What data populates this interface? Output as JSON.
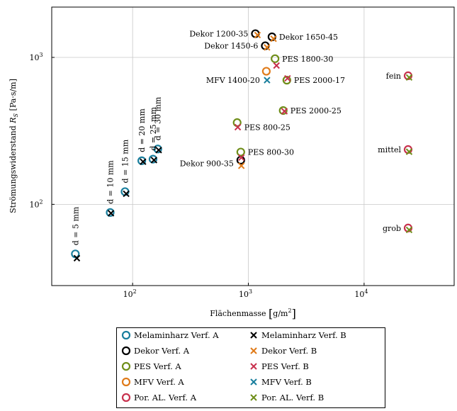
{
  "chart_data": {
    "type": "scatter",
    "xlabel": "Flächenmasse [g/m²]",
    "ylabel": "Strömungswiderstand R_S [Pa·s/m]",
    "xscale": "log",
    "yscale": "log",
    "xlim": [
      20,
      60000
    ],
    "ylim": [
      28,
      2200
    ],
    "xticks": [
      {
        "value": 100,
        "base": "10",
        "exp": "2"
      },
      {
        "value": 1000,
        "base": "10",
        "exp": "3"
      },
      {
        "value": 10000,
        "base": "10",
        "exp": "4"
      }
    ],
    "yticks": [
      {
        "value": 100,
        "base": "10",
        "exp": "2"
      },
      {
        "value": 1000,
        "base": "10",
        "exp": "3"
      }
    ],
    "grid": true,
    "legend_position": "below",
    "series": [
      {
        "name": "Melaminharz Verf. A",
        "marker": "circle",
        "color": "#1a7f9e",
        "points": [
          [
            32,
            46
          ],
          [
            64,
            88
          ],
          [
            86,
            122
          ],
          [
            120,
            198
          ],
          [
            150,
            203
          ],
          [
            165,
            238
          ]
        ]
      },
      {
        "name": "Melaminharz Verf. B",
        "marker": "cross",
        "color": "#000000",
        "points": [
          [
            33,
            43
          ],
          [
            65,
            87
          ],
          [
            88,
            118
          ],
          [
            123,
            195
          ],
          [
            153,
            200
          ],
          [
            168,
            234
          ]
        ]
      },
      {
        "name": "Dekor Verf. A",
        "marker": "circle",
        "color": "#000000",
        "points": [
          [
            1150,
            1450
          ],
          [
            1400,
            1200
          ],
          [
            1600,
            1380
          ],
          [
            860,
            200
          ]
        ]
      },
      {
        "name": "Dekor Verf. B",
        "marker": "cross",
        "color": "#e07b1a",
        "points": [
          [
            1200,
            1420
          ],
          [
            1450,
            1170
          ],
          [
            1650,
            1340
          ],
          [
            870,
            183
          ]
        ]
      },
      {
        "name": "PES Verf. A",
        "marker": "circle",
        "color": "#6f8e1a",
        "points": [
          [
            1700,
            980
          ],
          [
            2150,
            700
          ],
          [
            2000,
            435
          ],
          [
            800,
            360
          ],
          [
            860,
            227
          ]
        ]
      },
      {
        "name": "PES Verf. B",
        "marker": "cross",
        "color": "#c8324e",
        "points": [
          [
            1750,
            880
          ],
          [
            2180,
            720
          ],
          [
            2050,
            430
          ],
          [
            810,
            335
          ],
          [
            870,
            208
          ]
        ]
      },
      {
        "name": "MFV Verf. A",
        "marker": "circle",
        "color": "#e07b1a",
        "points": [
          [
            1430,
            805
          ]
        ]
      },
      {
        "name": "MFV Verf. B",
        "marker": "cross",
        "color": "#1a7f9e",
        "points": [
          [
            1450,
            700
          ]
        ]
      },
      {
        "name": "Por. AL. Verf. A",
        "marker": "circle",
        "color": "#c8324e",
        "points": [
          [
            24000,
            750
          ],
          [
            24000,
            236
          ],
          [
            24000,
            69
          ]
        ]
      },
      {
        "name": "Por. AL. Verf. B",
        "marker": "cross",
        "color": "#6f8e1a",
        "points": [
          [
            24500,
            730
          ],
          [
            24500,
            228
          ],
          [
            24500,
            67
          ]
        ]
      }
    ],
    "annotations": [
      {
        "text": "Dekor 1200-35",
        "x": 1150,
        "y": 1450,
        "anchor": "end"
      },
      {
        "text": "Dekor 1650-45",
        "x": 1600,
        "y": 1380,
        "anchor": "start"
      },
      {
        "text": "Dekor 1450-6",
        "x": 1400,
        "y": 1200,
        "anchor": "end"
      },
      {
        "text": "PES 1800-30",
        "x": 1700,
        "y": 980,
        "anchor": "start"
      },
      {
        "text": "MFV 1400-20",
        "x": 1450,
        "y": 700,
        "anchor": "end"
      },
      {
        "text": "PES 2000-17",
        "x": 2150,
        "y": 700,
        "anchor": "start"
      },
      {
        "text": "PES 2000-25",
        "x": 2000,
        "y": 435,
        "anchor": "start"
      },
      {
        "text": "PES 800-25",
        "x": 800,
        "y": 335,
        "anchor": "start"
      },
      {
        "text": "PES 800-30",
        "x": 860,
        "y": 227,
        "anchor": "start"
      },
      {
        "text": "Dekor 900-35",
        "x": 860,
        "y": 190,
        "anchor": "end"
      },
      {
        "text": "fein",
        "x": 24000,
        "y": 750,
        "anchor": "end"
      },
      {
        "text": "mittel",
        "x": 24000,
        "y": 236,
        "anchor": "end"
      },
      {
        "text": "grob",
        "x": 24000,
        "y": 69,
        "anchor": "end"
      }
    ],
    "vertical_annotations": [
      {
        "text": "d = 5 mm",
        "x": 32,
        "y": 46
      },
      {
        "text": "d = 10 mm",
        "x": 64,
        "y": 88
      },
      {
        "text": "d = 15 mm",
        "x": 86,
        "y": 122
      },
      {
        "text": "d = 20 mm",
        "x": 120,
        "y": 198
      },
      {
        "text": "d = 25 mm",
        "x": 150,
        "y": 203
      },
      {
        "text": "d = 30 mm",
        "x": 165,
        "y": 238
      }
    ]
  }
}
